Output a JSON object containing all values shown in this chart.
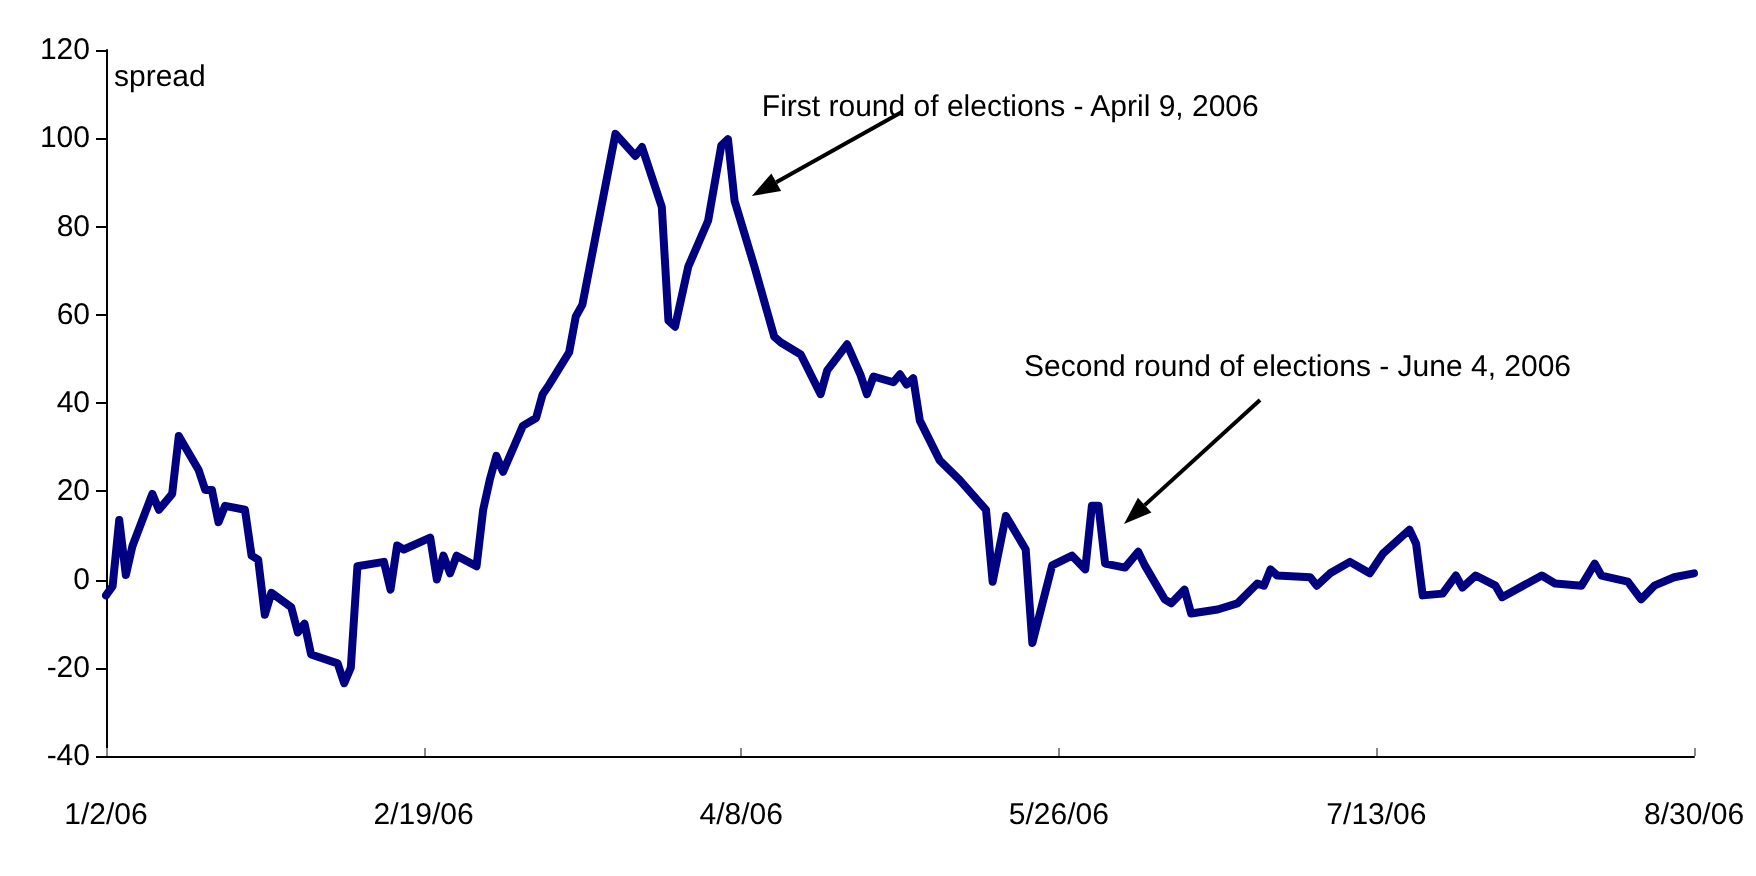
{
  "chart_data": {
    "type": "line",
    "ylabel": "spread",
    "x": [
      "2006-01-02",
      "2006-01-03",
      "2006-01-04",
      "2006-01-05",
      "2006-01-06",
      "2006-01-09",
      "2006-01-10",
      "2006-01-12",
      "2006-01-13",
      "2006-01-16",
      "2006-01-17",
      "2006-01-18",
      "2006-01-19",
      "2006-01-20",
      "2006-01-23",
      "2006-01-24",
      "2006-01-25",
      "2006-01-26",
      "2006-01-27",
      "2006-01-30",
      "2006-01-31",
      "2006-02-01",
      "2006-02-02",
      "2006-02-06",
      "2006-02-07",
      "2006-02-08",
      "2006-02-09",
      "2006-02-13",
      "2006-02-14",
      "2006-02-15",
      "2006-02-16",
      "2006-02-20",
      "2006-02-21",
      "2006-02-22",
      "2006-02-23",
      "2006-02-24",
      "2006-02-27",
      "2006-02-28",
      "2006-03-01",
      "2006-03-02",
      "2006-03-03",
      "2006-03-06",
      "2006-03-08",
      "2006-03-09",
      "2006-03-10",
      "2006-03-13",
      "2006-03-14",
      "2006-03-15",
      "2006-03-20",
      "2006-03-23",
      "2006-03-24",
      "2006-03-27",
      "2006-03-28",
      "2006-03-29",
      "2006-03-31",
      "2006-04-03",
      "2006-04-05",
      "2006-04-06",
      "2006-04-07",
      "2006-04-10",
      "2006-04-13",
      "2006-04-14",
      "2006-04-17",
      "2006-04-20",
      "2006-04-21",
      "2006-04-24",
      "2006-04-26",
      "2006-04-27",
      "2006-04-28",
      "2006-05-01",
      "2006-05-02",
      "2006-05-03",
      "2006-05-04",
      "2006-05-05",
      "2006-05-08",
      "2006-05-11",
      "2006-05-15",
      "2006-05-16",
      "2006-05-18",
      "2006-05-21",
      "2006-05-22",
      "2006-05-25",
      "2006-05-28",
      "2006-05-30",
      "2006-05-31",
      "2006-06-01",
      "2006-06-02",
      "2006-06-05",
      "2006-06-07",
      "2006-06-08",
      "2006-06-11",
      "2006-06-12",
      "2006-06-14",
      "2006-06-15",
      "2006-06-19",
      "2006-06-22",
      "2006-06-25",
      "2006-06-26",
      "2006-06-27",
      "2006-06-28",
      "2006-07-03",
      "2006-07-04",
      "2006-07-06",
      "2006-07-09",
      "2006-07-12",
      "2006-07-14",
      "2006-07-18",
      "2006-07-19",
      "2006-07-20",
      "2006-07-23",
      "2006-07-25",
      "2006-07-26",
      "2006-07-28",
      "2006-07-31",
      "2006-08-01",
      "2006-08-07",
      "2006-08-09",
      "2006-08-13",
      "2006-08-15",
      "2006-08-16",
      "2006-08-20",
      "2006-08-22",
      "2006-08-24",
      "2006-08-27",
      "2006-08-30"
    ],
    "series": [
      {
        "color": "#000080",
        "values": [
          -3.6,
          -1.5,
          13.5,
          1,
          7.6,
          19.4,
          15.8,
          19.4,
          32.5,
          24.8,
          20.3,
          20.3,
          13,
          16.7,
          15.8,
          5.4,
          4.5,
          -8,
          -3,
          -6.3,
          -12,
          -10,
          -17,
          -19,
          -23.5,
          -20,
          3,
          4,
          -2.3,
          7.7,
          6.8,
          9.5,
          0,
          5.4,
          1.4,
          5.4,
          3,
          15.8,
          22.6,
          28,
          24.4,
          34.8,
          36.6,
          42,
          44.2,
          51.5,
          59.6,
          62.3,
          101,
          96,
          98,
          84.4,
          58.7,
          57.3,
          70.9,
          81.3,
          98.4,
          99.8,
          85.8,
          70.9,
          55,
          53.7,
          51,
          42,
          47.4,
          53.3,
          46.5,
          42,
          46,
          44.7,
          46.5,
          44.2,
          45.6,
          36,
          27,
          22.6,
          15.8,
          -0.5,
          14.4,
          6.8,
          -14.4,
          3.2,
          5.4,
          2.3,
          16.7,
          16.7,
          3.6,
          2.7,
          6.3,
          3.2,
          -4.5,
          -5.4,
          -2.3,
          -7.7,
          -6.8,
          -5.4,
          -0.9,
          -1.4,
          2.3,
          0.9,
          0.5,
          -1.4,
          1.4,
          4,
          1.4,
          5.9,
          11.3,
          8.1,
          -3.6,
          -3.2,
          0.9,
          -1.8,
          0.9,
          -1.4,
          -4,
          0.9,
          -0.9,
          -1.4,
          3.6,
          0.9,
          -0.5,
          -4.5,
          -1.4,
          0.5,
          1.4
        ]
      }
    ],
    "xlim": [
      "2006-01-02",
      "2006-08-30"
    ],
    "xticks": [
      {
        "value": "2006-01-02",
        "label": "1/2/06"
      },
      {
        "value": "2006-02-19",
        "label": "2/19/06"
      },
      {
        "value": "2006-04-08",
        "label": "4/8/06"
      },
      {
        "value": "2006-05-26",
        "label": "5/26/06"
      },
      {
        "value": "2006-07-13",
        "label": "7/13/06"
      },
      {
        "value": "2006-08-30",
        "label": "8/30/06"
      }
    ],
    "ylim": [
      -40,
      120
    ],
    "yticks": [
      -40,
      -20,
      0,
      20,
      40,
      60,
      80,
      100,
      120
    ],
    "annotations": [
      {
        "text": "First round of elections - April 9, 2006",
        "x": "2006-04-09",
        "y": 86
      },
      "Second round of elections - June 4, 2006"
    ],
    "line_style": "solid",
    "marker": "none",
    "grid": false
  }
}
